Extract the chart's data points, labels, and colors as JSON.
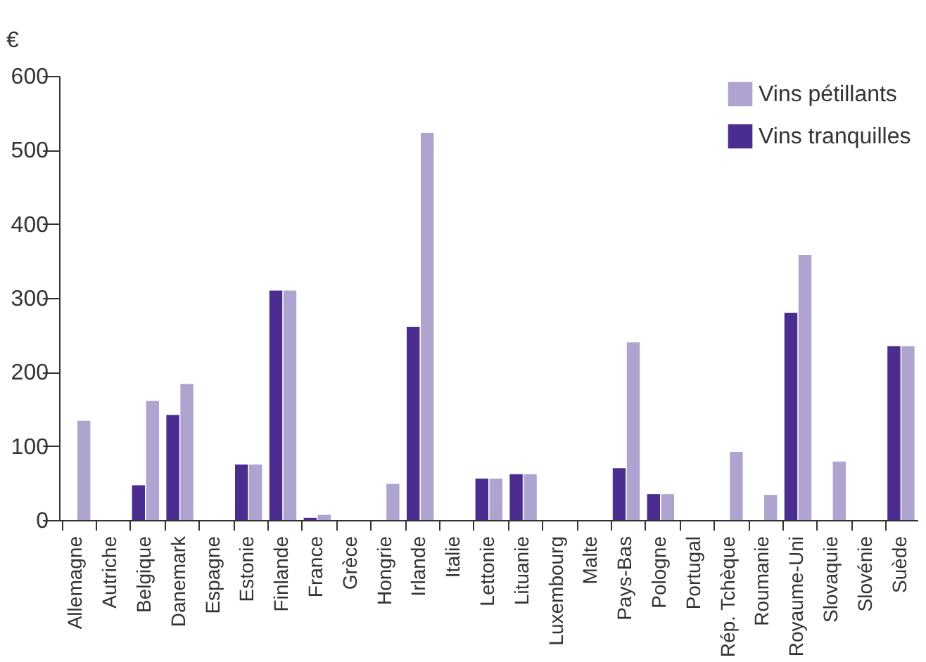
{
  "chart_data": {
    "type": "bar",
    "ylabel": "€",
    "categories": [
      "Allemagne",
      "Autriche",
      "Belgique",
      "Danemark",
      "Espagne",
      "Estonie",
      "Finlande",
      "France",
      "Grèce",
      "Hongrie",
      "Irlande",
      "Italie",
      "Lettonie",
      "Lituanie",
      "Luxembourg",
      "Malte",
      "Pays-Bas",
      "Pologne",
      "Portugal",
      "Rép. Tchèque",
      "Roumanie",
      "Royaume-Uni",
      "Slovaquie",
      "Slovénie",
      "Suède"
    ],
    "series": [
      {
        "name": "Vins tranquilles",
        "color": "#4a2d8f",
        "values": [
          null,
          null,
          47,
          142,
          null,
          75,
          310,
          3,
          null,
          null,
          261,
          null,
          56,
          62,
          null,
          null,
          70,
          35,
          null,
          null,
          null,
          280,
          null,
          null,
          235
        ]
      },
      {
        "name": "Vins pétillants",
        "color": "#afa4cf",
        "values": [
          134,
          null,
          161,
          184,
          null,
          75,
          310,
          7,
          null,
          49,
          523,
          null,
          56,
          62,
          null,
          null,
          240,
          35,
          null,
          92,
          34,
          358,
          79,
          null,
          235
        ]
      }
    ],
    "ylim": [
      0,
      600
    ],
    "yticks": [
      0,
      100,
      200,
      300,
      400,
      500,
      600
    ],
    "grid": false,
    "legend": "top right"
  }
}
